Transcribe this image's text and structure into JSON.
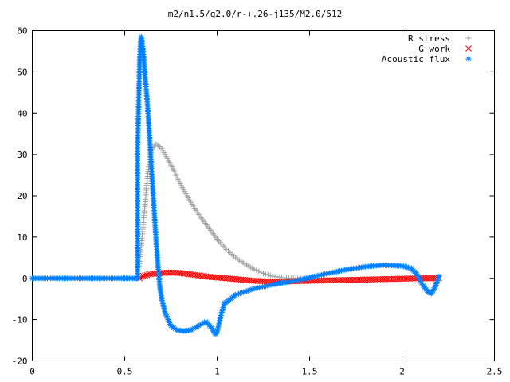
{
  "chart_data": {
    "type": "scatter",
    "title": "m2/n1.5/q2.0/r-+.26-j135/M2.0/512",
    "xlabel": "",
    "ylabel": "",
    "xlim": [
      0,
      2.5
    ],
    "ylim": [
      -20,
      60
    ],
    "x_ticks": [
      "0",
      "0.5",
      "1",
      "1.5",
      "2",
      "2.5"
    ],
    "y_ticks": [
      "-20",
      "-10",
      "0",
      "10",
      "20",
      "30",
      "40",
      "50",
      "60"
    ],
    "grid": false,
    "legend_position": "top-right",
    "series": [
      {
        "name": "R stress",
        "marker": "+",
        "color": "#a0a0a0",
        "points": [
          [
            0.58,
            3
          ],
          [
            0.59,
            8
          ],
          [
            0.6,
            13
          ],
          [
            0.61,
            18
          ],
          [
            0.62,
            23
          ],
          [
            0.63,
            27
          ],
          [
            0.64,
            30
          ],
          [
            0.65,
            31.5
          ],
          [
            0.67,
            32.5
          ],
          [
            0.7,
            31.5
          ],
          [
            0.75,
            27.5
          ],
          [
            0.8,
            23
          ],
          [
            0.85,
            19
          ],
          [
            0.9,
            15.5
          ],
          [
            0.95,
            12.5
          ],
          [
            1.0,
            9.5
          ],
          [
            1.05,
            7
          ],
          [
            1.1,
            5
          ],
          [
            1.15,
            3.5
          ],
          [
            1.2,
            2.2
          ],
          [
            1.25,
            1.2
          ],
          [
            1.3,
            0.5
          ],
          [
            1.35,
            0.2
          ],
          [
            1.4,
            0
          ],
          [
            1.45,
            0
          ]
        ]
      },
      {
        "name": "G work",
        "marker": "x",
        "color": "#ff0000",
        "points": [
          [
            0.58,
            0
          ],
          [
            0.6,
            0.6
          ],
          [
            0.65,
            1.1
          ],
          [
            0.7,
            1.3
          ],
          [
            0.75,
            1.4
          ],
          [
            0.8,
            1.3
          ],
          [
            0.85,
            1.0
          ],
          [
            0.9,
            0.7
          ],
          [
            0.95,
            0.4
          ],
          [
            1.0,
            0.2
          ],
          [
            1.05,
            0
          ],
          [
            1.1,
            -0.2
          ],
          [
            1.15,
            -0.4
          ],
          [
            1.2,
            -0.6
          ],
          [
            1.25,
            -0.7
          ],
          [
            1.3,
            -0.8
          ],
          [
            1.35,
            -0.8
          ],
          [
            1.4,
            -0.7
          ],
          [
            1.5,
            -0.6
          ],
          [
            1.6,
            -0.5
          ],
          [
            1.7,
            -0.4
          ],
          [
            1.8,
            -0.3
          ],
          [
            1.9,
            -0.2
          ],
          [
            2.0,
            -0.1
          ],
          [
            2.1,
            0
          ],
          [
            2.2,
            0
          ]
        ]
      },
      {
        "name": "Acoustic flux",
        "marker": "*",
        "color": "#0080ff",
        "points": [
          [
            0.0,
            0
          ],
          [
            0.1,
            0
          ],
          [
            0.2,
            0
          ],
          [
            0.3,
            0
          ],
          [
            0.4,
            0
          ],
          [
            0.5,
            0
          ],
          [
            0.57,
            0
          ],
          [
            0.57,
            32
          ],
          [
            0.58,
            51
          ],
          [
            0.585,
            57
          ],
          [
            0.59,
            58.5
          ],
          [
            0.6,
            55
          ],
          [
            0.61,
            49
          ],
          [
            0.62,
            44
          ],
          [
            0.63,
            37.5
          ],
          [
            0.64,
            30
          ],
          [
            0.65,
            23
          ],
          [
            0.66,
            16
          ],
          [
            0.67,
            9
          ],
          [
            0.68,
            3
          ],
          [
            0.69,
            -2
          ],
          [
            0.7,
            -5
          ],
          [
            0.72,
            -8.5
          ],
          [
            0.75,
            -11.5
          ],
          [
            0.78,
            -12.5
          ],
          [
            0.82,
            -12.8
          ],
          [
            0.86,
            -12.5
          ],
          [
            0.9,
            -11.5
          ],
          [
            0.94,
            -10.5
          ],
          [
            0.97,
            -12
          ],
          [
            0.99,
            -13.5
          ],
          [
            1.0,
            -13
          ],
          [
            1.02,
            -9
          ],
          [
            1.04,
            -6
          ],
          [
            1.06,
            -5.5
          ],
          [
            1.1,
            -4
          ],
          [
            1.2,
            -2.5
          ],
          [
            1.3,
            -1.5
          ],
          [
            1.4,
            -0.8
          ],
          [
            1.5,
            0.2
          ],
          [
            1.6,
            1.2
          ],
          [
            1.7,
            2.1
          ],
          [
            1.8,
            2.8
          ],
          [
            1.9,
            3.2
          ],
          [
            2.0,
            3.0
          ],
          [
            2.05,
            2.4
          ],
          [
            2.08,
            1
          ],
          [
            2.11,
            -1.5
          ],
          [
            2.14,
            -3.3
          ],
          [
            2.16,
            -3.7
          ],
          [
            2.18,
            -2
          ],
          [
            2.2,
            0.5
          ]
        ]
      }
    ]
  }
}
